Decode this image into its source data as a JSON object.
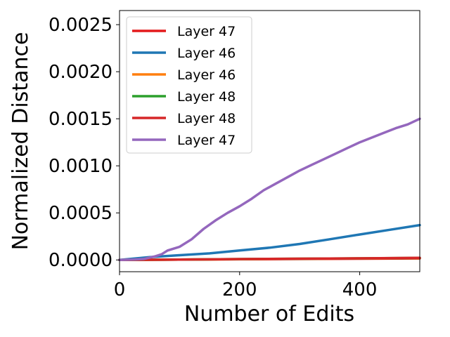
{
  "chart_data": {
    "type": "line",
    "title": "",
    "xlabel": "Number of Edits",
    "ylabel": "Normalized Distance",
    "xlim": [
      0,
      500
    ],
    "ylim": [
      -0.000125,
      0.00265
    ],
    "x_ticks": [
      0,
      200,
      400
    ],
    "x_tick_labels": [
      "0",
      "200",
      "400"
    ],
    "y_ticks": [
      0,
      0.0005,
      0.001,
      0.0015,
      0.002,
      0.0025
    ],
    "y_tick_labels": [
      "0.0000",
      "0.0005",
      "0.0010",
      "0.0015",
      "0.0020",
      "0.0025"
    ],
    "grid": false,
    "legend_position": "top-left",
    "series": [
      {
        "name": "Layer 47",
        "color": "#e41a1c",
        "x": [
          0,
          100,
          200,
          300,
          400,
          500
        ],
        "y": [
          0,
          3e-06,
          7e-06,
          1e-05,
          1.3e-05,
          1.6e-05
        ]
      },
      {
        "name": "Layer 46",
        "color": "#1f77b4",
        "x": [
          0,
          50,
          100,
          150,
          200,
          250,
          300,
          350,
          400,
          450,
          500
        ],
        "y": [
          0,
          3e-05,
          5e-05,
          7e-05,
          0.0001,
          0.00013,
          0.00017,
          0.00022,
          0.00027,
          0.00032,
          0.00037
        ]
      },
      {
        "name": "Layer 46",
        "color": "#ff7f0e",
        "x": [
          0,
          100,
          200,
          300,
          400,
          500
        ],
        "y": [
          0,
          4e-06,
          8e-06,
          1.2e-05,
          1.6e-05,
          2e-05
        ]
      },
      {
        "name": "Layer 48",
        "color": "#2ca02c",
        "x": [
          0,
          100,
          200,
          300,
          400,
          500
        ],
        "y": [
          0,
          4e-06,
          9e-06,
          1.3e-05,
          1.7e-05,
          2.1e-05
        ]
      },
      {
        "name": "Layer 48",
        "color": "#d62728",
        "x": [
          0,
          100,
          200,
          300,
          400,
          500
        ],
        "y": [
          0,
          4e-06,
          9e-06,
          1.3e-05,
          1.7e-05,
          2.2e-05
        ]
      },
      {
        "name": "Layer 47",
        "color": "#9467bd",
        "x": [
          0,
          25,
          40,
          60,
          70,
          80,
          100,
          120,
          140,
          160,
          180,
          200,
          220,
          240,
          260,
          280,
          300,
          320,
          340,
          360,
          380,
          400,
          420,
          440,
          460,
          480,
          500
        ],
        "y": [
          0,
          5e-06,
          1e-05,
          4e-05,
          6e-05,
          0.0001,
          0.00014,
          0.00022,
          0.00033,
          0.00042,
          0.0005,
          0.00057,
          0.00065,
          0.00074,
          0.00081,
          0.00088,
          0.00095,
          0.00101,
          0.00107,
          0.00113,
          0.00119,
          0.00125,
          0.0013,
          0.00135,
          0.0014,
          0.00144,
          0.0015
        ]
      }
    ]
  }
}
